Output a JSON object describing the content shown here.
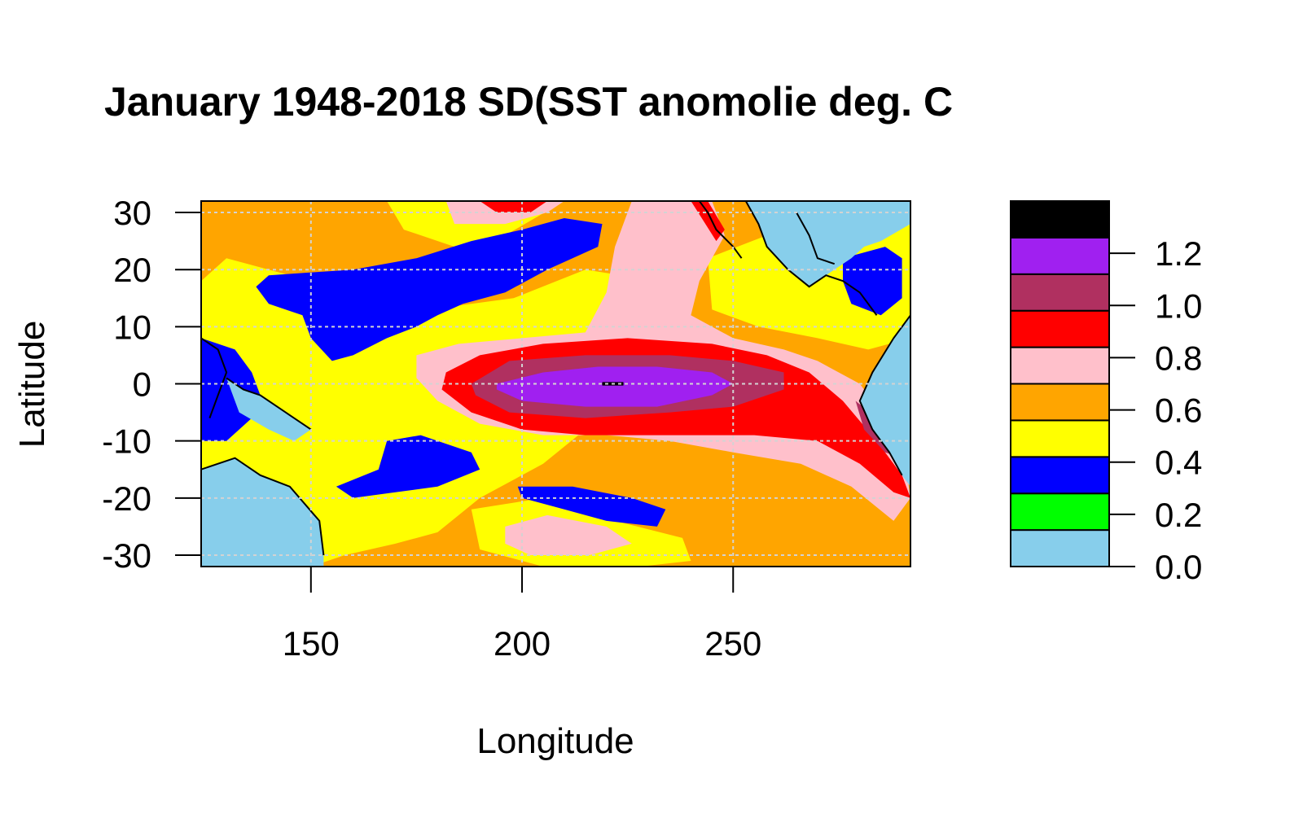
{
  "chart_data": {
    "type": "heatmap",
    "title": "January 1948-2018 SD(SST anomolie  deg. C",
    "xlabel": "Longitude",
    "ylabel": "Latitude",
    "xlim": [
      124,
      292
    ],
    "ylim": [
      -32,
      32
    ],
    "x_ticks": [
      150,
      200,
      250
    ],
    "y_ticks": [
      30,
      20,
      10,
      0,
      -10,
      -20,
      -30
    ],
    "grid": true,
    "grid_x": [
      150,
      200,
      250
    ],
    "grid_y": [
      30,
      20,
      10,
      0,
      -10,
      -20,
      -30
    ],
    "legend": {
      "position": "right",
      "levels": [
        0.0,
        0.14,
        0.28,
        0.42,
        0.56,
        0.7,
        0.84,
        0.98,
        1.12,
        1.26,
        1.4
      ],
      "ticks": [
        0.0,
        0.2,
        0.4,
        0.6,
        0.8,
        1.0,
        1.2
      ],
      "tick_labels": [
        "0.0",
        "0.2",
        "0.4",
        "0.6",
        "0.8",
        "1.0",
        "1.2"
      ],
      "colors": [
        "#87ceeb",
        "#00ff00",
        "#0000ff",
        "#ffff00",
        "#ffa500",
        "#ffc0cb",
        "#ff0000",
        "#b03060",
        "#a020f0",
        "#000000"
      ]
    },
    "regions": [
      {
        "color": "#ffa500",
        "points": [
          [
            124,
            32
          ],
          [
            292,
            32
          ],
          [
            292,
            -32
          ],
          [
            124,
            -32
          ]
        ]
      },
      {
        "color": "#ffff00",
        "points": [
          [
            124,
            18
          ],
          [
            130,
            22
          ],
          [
            140,
            20
          ],
          [
            160,
            16
          ],
          [
            178,
            13
          ],
          [
            198,
            15
          ],
          [
            215,
            20
          ],
          [
            232,
            18
          ],
          [
            238,
            4
          ],
          [
            230,
            -2
          ],
          [
            215,
            -8
          ],
          [
            205,
            -14
          ],
          [
            190,
            -20
          ],
          [
            180,
            -26
          ],
          [
            170,
            -28
          ],
          [
            158,
            -30
          ],
          [
            150,
            -32
          ],
          [
            124,
            -32
          ]
        ]
      },
      {
        "color": "#ffff00",
        "points": [
          [
            168,
            32
          ],
          [
            172,
            27
          ],
          [
            184,
            24
          ],
          [
            196,
            26
          ],
          [
            210,
            32
          ]
        ]
      },
      {
        "color": "#ffff00",
        "points": [
          [
            244,
            22
          ],
          [
            258,
            26
          ],
          [
            270,
            28
          ],
          [
            285,
            32
          ],
          [
            292,
            32
          ],
          [
            292,
            8
          ],
          [
            282,
            6
          ],
          [
            270,
            8
          ],
          [
            256,
            10
          ],
          [
            245,
            13
          ]
        ]
      },
      {
        "color": "#ffff00",
        "points": [
          [
            188,
            -22
          ],
          [
            205,
            -20
          ],
          [
            222,
            -24
          ],
          [
            238,
            -27
          ],
          [
            240,
            -31
          ],
          [
            228,
            -32
          ],
          [
            205,
            -32
          ],
          [
            190,
            -29
          ]
        ]
      },
      {
        "color": "#0000ff",
        "points": [
          [
            137,
            17
          ],
          [
            140,
            19
          ],
          [
            160,
            20
          ],
          [
            175,
            22
          ],
          [
            188,
            25
          ],
          [
            200,
            27
          ],
          [
            210,
            29
          ],
          [
            219,
            28
          ],
          [
            218,
            24
          ],
          [
            206,
            20
          ],
          [
            196,
            16
          ],
          [
            186,
            14
          ],
          [
            180,
            12
          ],
          [
            175,
            10
          ],
          [
            168,
            8
          ],
          [
            160,
            5
          ],
          [
            155,
            4
          ],
          [
            150,
            8
          ],
          [
            148,
            12
          ],
          [
            140,
            14
          ]
        ]
      },
      {
        "color": "#0000ff",
        "points": [
          [
            124,
            8
          ],
          [
            132,
            6
          ],
          [
            136,
            2
          ],
          [
            138,
            -2
          ],
          [
            136,
            -6
          ],
          [
            130,
            -10
          ],
          [
            124,
            -10
          ]
        ]
      },
      {
        "color": "#0000ff",
        "points": [
          [
            156,
            -18
          ],
          [
            166,
            -15
          ],
          [
            168,
            -10
          ],
          [
            176,
            -9
          ],
          [
            188,
            -12
          ],
          [
            190,
            -15
          ],
          [
            180,
            -18
          ],
          [
            170,
            -19
          ],
          [
            160,
            -20
          ]
        ]
      },
      {
        "color": "#0000ff",
        "points": [
          [
            199,
            -18
          ],
          [
            212,
            -18
          ],
          [
            226,
            -20
          ],
          [
            234,
            -22
          ],
          [
            232,
            -25
          ],
          [
            220,
            -24
          ],
          [
            210,
            -22
          ],
          [
            200,
            -20
          ]
        ]
      },
      {
        "color": "#0000ff",
        "points": [
          [
            276,
            22
          ],
          [
            286,
            24
          ],
          [
            290,
            22
          ],
          [
            290,
            15
          ],
          [
            285,
            12
          ],
          [
            278,
            14
          ],
          [
            276,
            18
          ]
        ]
      },
      {
        "color": "#ffc0cb",
        "points": [
          [
            175,
            5
          ],
          [
            185,
            7
          ],
          [
            200,
            8
          ],
          [
            215,
            9
          ],
          [
            220,
            16
          ],
          [
            222,
            24
          ],
          [
            226,
            32
          ],
          [
            245,
            32
          ],
          [
            248,
            26
          ],
          [
            242,
            18
          ],
          [
            240,
            12
          ],
          [
            250,
            8
          ],
          [
            262,
            6
          ],
          [
            270,
            4
          ],
          [
            280,
            0
          ],
          [
            286,
            -6
          ],
          [
            290,
            -10
          ],
          [
            292,
            -20
          ],
          [
            288,
            -24
          ],
          [
            278,
            -18
          ],
          [
            266,
            -14
          ],
          [
            250,
            -12
          ],
          [
            235,
            -10
          ],
          [
            220,
            -9
          ],
          [
            205,
            -9
          ],
          [
            190,
            -7
          ],
          [
            180,
            -3
          ],
          [
            175,
            1
          ]
        ]
      },
      {
        "color": "#ffc0cb",
        "points": [
          [
            182,
            32
          ],
          [
            184,
            28
          ],
          [
            196,
            28
          ],
          [
            206,
            30
          ],
          [
            210,
            32
          ]
        ]
      },
      {
        "color": "#ffc0cb",
        "points": [
          [
            196,
            -25
          ],
          [
            206,
            -23
          ],
          [
            220,
            -25
          ],
          [
            226,
            -28
          ],
          [
            216,
            -30
          ],
          [
            202,
            -30
          ],
          [
            196,
            -28
          ]
        ]
      },
      {
        "color": "#ff0000",
        "points": [
          [
            182,
            2
          ],
          [
            190,
            5
          ],
          [
            205,
            7
          ],
          [
            225,
            8
          ],
          [
            245,
            7
          ],
          [
            258,
            5
          ],
          [
            268,
            2
          ],
          [
            276,
            -3
          ],
          [
            284,
            -10
          ],
          [
            290,
            -16
          ],
          [
            292,
            -20
          ],
          [
            288,
            -19
          ],
          [
            280,
            -14
          ],
          [
            270,
            -10
          ],
          [
            255,
            -9
          ],
          [
            235,
            -9
          ],
          [
            215,
            -9
          ],
          [
            200,
            -8
          ],
          [
            188,
            -5
          ],
          [
            181,
            -1
          ]
        ]
      },
      {
        "color": "#ff0000",
        "points": [
          [
            190,
            32
          ],
          [
            194,
            30
          ],
          [
            202,
            30
          ],
          [
            206,
            32
          ]
        ]
      },
      {
        "color": "#ff0000",
        "points": [
          [
            240,
            32
          ],
          [
            244,
            32
          ],
          [
            248,
            27
          ],
          [
            246,
            25
          ]
        ]
      },
      {
        "color": "#b03060",
        "points": [
          [
            188,
            0
          ],
          [
            197,
            4
          ],
          [
            215,
            5
          ],
          [
            235,
            5
          ],
          [
            250,
            4
          ],
          [
            262,
            2
          ],
          [
            262,
            -1
          ],
          [
            250,
            -4
          ],
          [
            235,
            -5
          ],
          [
            215,
            -6
          ],
          [
            197,
            -5
          ],
          [
            189,
            -2
          ]
        ]
      },
      {
        "color": "#b03060",
        "points": [
          [
            279,
            -3
          ],
          [
            284,
            -6
          ],
          [
            288,
            -10
          ],
          [
            290,
            -13
          ],
          [
            286,
            -12
          ],
          [
            281,
            -8
          ]
        ]
      },
      {
        "color": "#a020f0",
        "points": [
          [
            194,
            0
          ],
          [
            205,
            2
          ],
          [
            218,
            3
          ],
          [
            232,
            3
          ],
          [
            245,
            2
          ],
          [
            250,
            0
          ],
          [
            245,
            -2
          ],
          [
            232,
            -4
          ],
          [
            215,
            -4
          ],
          [
            200,
            -3
          ],
          [
            194,
            -1
          ]
        ]
      },
      {
        "color": "#000000",
        "points": [
          [
            219,
            0.3
          ],
          [
            224,
            0.3
          ],
          [
            224,
            -0.3
          ],
          [
            219,
            -0.3
          ]
        ]
      },
      {
        "color": "#87ceeb",
        "points": [
          [
            124,
            -15
          ],
          [
            132,
            -13
          ],
          [
            138,
            -16
          ],
          [
            145,
            -18
          ],
          [
            152,
            -24
          ],
          [
            153,
            -30
          ],
          [
            153,
            -32
          ],
          [
            124,
            -32
          ]
        ]
      },
      {
        "color": "#87ceeb",
        "points": [
          [
            130,
            1
          ],
          [
            134,
            -1
          ],
          [
            138,
            -2
          ],
          [
            144,
            -5
          ],
          [
            150,
            -8
          ],
          [
            146,
            -10
          ],
          [
            140,
            -8
          ],
          [
            133,
            -5
          ]
        ]
      },
      {
        "color": "#87ceeb",
        "points": [
          [
            253,
            32
          ],
          [
            292,
            32
          ],
          [
            292,
            28
          ],
          [
            285,
            25
          ],
          [
            281,
            24
          ],
          [
            278,
            22
          ],
          [
            272,
            19
          ],
          [
            268,
            17
          ],
          [
            263,
            20
          ],
          [
            258,
            24
          ],
          [
            256,
            28
          ]
        ]
      },
      {
        "color": "#87ceeb",
        "points": [
          [
            292,
            12
          ],
          [
            288,
            8
          ],
          [
            283,
            2
          ],
          [
            280,
            -3
          ],
          [
            283,
            -8
          ],
          [
            287,
            -12
          ],
          [
            290,
            -16
          ],
          [
            292,
            -18
          ]
        ]
      }
    ],
    "coastlines": [
      [
        [
          124,
          8
        ],
        [
          128,
          6
        ],
        [
          130,
          2
        ],
        [
          128,
          -2
        ],
        [
          126,
          -6
        ]
      ],
      [
        [
          130,
          1
        ],
        [
          134,
          -1
        ],
        [
          138,
          -2
        ],
        [
          144,
          -5
        ],
        [
          150,
          -8
        ]
      ],
      [
        [
          124,
          -15
        ],
        [
          132,
          -13
        ],
        [
          138,
          -16
        ],
        [
          145,
          -18
        ],
        [
          152,
          -24
        ],
        [
          153,
          -30
        ]
      ],
      [
        [
          242,
          32
        ],
        [
          244,
          30
        ],
        [
          246,
          27
        ],
        [
          250,
          24
        ],
        [
          252,
          22
        ]
      ],
      [
        [
          253,
          32
        ],
        [
          256,
          28
        ],
        [
          258,
          24
        ],
        [
          263,
          20
        ],
        [
          268,
          17
        ],
        [
          272,
          19
        ],
        [
          276,
          18
        ],
        [
          280,
          16
        ],
        [
          284,
          12
        ]
      ],
      [
        [
          292,
          12
        ],
        [
          288,
          8
        ],
        [
          283,
          2
        ],
        [
          280,
          -3
        ],
        [
          283,
          -8
        ],
        [
          287,
          -12
        ],
        [
          290,
          -16
        ]
      ],
      [
        [
          265,
          30
        ],
        [
          268,
          26
        ],
        [
          270,
          22
        ],
        [
          274,
          21
        ]
      ]
    ]
  }
}
